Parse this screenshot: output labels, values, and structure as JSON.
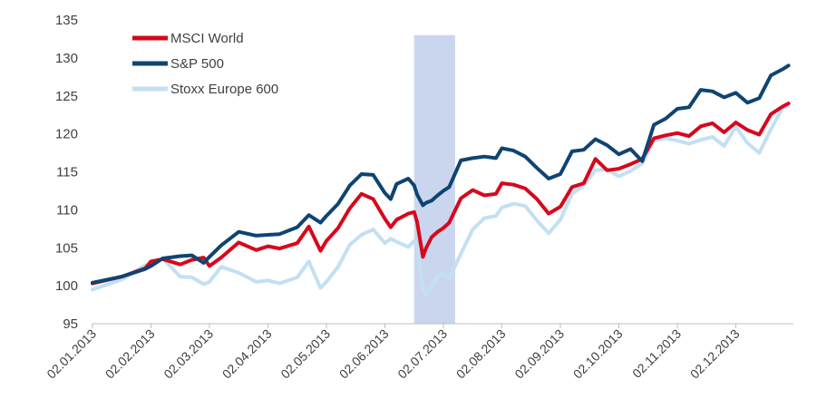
{
  "chart_data": {
    "type": "line",
    "title": "",
    "xlabel": "",
    "ylabel": "",
    "ylim": [
      95,
      135
    ],
    "y_ticks": [
      "95",
      "100",
      "105",
      "110",
      "115",
      "120",
      "125",
      "130",
      "135"
    ],
    "x_ticks": [
      "02.01.2013",
      "02.02.2013",
      "02.03.2013",
      "02.04.2013",
      "02.05.2013",
      "02.06.2013",
      "02.07.2013",
      "02.08.2013",
      "02.09.2013",
      "02.10.2013",
      "02.11.2013",
      "02.12.2013"
    ],
    "legend_position": "top-left",
    "grid": false,
    "highlight_band": {
      "from_month": 5.5,
      "to_month": 6.2,
      "color": "#c9d6ee"
    },
    "x_month_positions": [
      0,
      0.5,
      0.9,
      1.0,
      1.2,
      1.5,
      1.7,
      1.9,
      2.0,
      2.2,
      2.5,
      2.8,
      3.0,
      3.2,
      3.5,
      3.7,
      3.9,
      4.0,
      4.2,
      4.4,
      4.6,
      4.8,
      5.0,
      5.1,
      5.2,
      5.4,
      5.5,
      5.55,
      5.65,
      5.7,
      5.8,
      5.9,
      6.0,
      6.1,
      6.3,
      6.5,
      6.7,
      6.9,
      7.0,
      7.2,
      7.4,
      7.6,
      7.8,
      8.0,
      8.2,
      8.4,
      8.6,
      8.8,
      9.0,
      9.2,
      9.4,
      9.6,
      9.8,
      10.0,
      10.2,
      10.4,
      10.6,
      10.8,
      11.0,
      11.2,
      11.4,
      11.6,
      11.8,
      11.9
    ],
    "series": [
      {
        "name": "MSCI World",
        "color": "#d7081c",
        "values": [
          100.3,
          101.2,
          102.3,
          103.2,
          103.5,
          102.8,
          103.4,
          103.7,
          102.6,
          103.7,
          105.7,
          104.7,
          105.2,
          104.9,
          105.6,
          107.8,
          104.6,
          105.9,
          107.6,
          110.2,
          112.1,
          111.4,
          108.8,
          107.7,
          108.7,
          109.5,
          109.7,
          108.4,
          103.8,
          104.9,
          106.4,
          107.1,
          107.6,
          108.3,
          111.5,
          112.6,
          111.9,
          112.1,
          113.5,
          113.3,
          112.8,
          111.4,
          109.5,
          110.4,
          113.0,
          113.5,
          116.7,
          115.2,
          115.4,
          116.0,
          116.7,
          119.4,
          119.8,
          120.1,
          119.7,
          121.0,
          121.4,
          120.2,
          121.5,
          120.5,
          119.9,
          122.6,
          123.6,
          124.0
        ]
      },
      {
        "name": "S&P 500",
        "color": "#0f4471",
        "values": [
          100.4,
          101.2,
          102.2,
          102.6,
          103.6,
          103.9,
          104.0,
          103.0,
          103.8,
          105.3,
          107.1,
          106.6,
          106.7,
          106.8,
          107.7,
          109.3,
          108.3,
          109.2,
          110.8,
          113.2,
          114.7,
          114.6,
          112.2,
          111.4,
          113.4,
          114.1,
          113.2,
          112.0,
          110.6,
          110.9,
          111.2,
          111.9,
          112.5,
          113.0,
          116.5,
          116.8,
          117.0,
          116.8,
          118.1,
          117.8,
          117.0,
          115.5,
          114.1,
          114.7,
          117.7,
          117.9,
          119.3,
          118.5,
          117.3,
          118.0,
          116.4,
          121.2,
          122.0,
          123.3,
          123.5,
          125.8,
          125.6,
          124.8,
          125.4,
          124.1,
          124.7,
          127.7,
          128.5,
          129.0
        ]
      },
      {
        "name": "Stoxx Europe 600",
        "color": "#c3e0f3",
        "values": [
          99.5,
          100.8,
          102.7,
          102.7,
          103.6,
          101.2,
          101.1,
          100.2,
          100.5,
          102.5,
          101.7,
          100.5,
          100.7,
          100.3,
          101.1,
          103.2,
          99.7,
          100.5,
          102.5,
          105.4,
          106.7,
          107.4,
          105.6,
          106.2,
          105.8,
          105.1,
          105.9,
          105.3,
          99.4,
          98.7,
          99.9,
          101.3,
          101.5,
          101.0,
          104.2,
          107.4,
          108.9,
          109.2,
          110.3,
          110.8,
          110.5,
          108.6,
          106.9,
          108.7,
          112.1,
          113.2,
          115.2,
          115.3,
          114.4,
          115.1,
          116.1,
          119.1,
          119.4,
          119.1,
          118.7,
          119.2,
          119.6,
          118.4,
          120.9,
          118.8,
          117.5,
          120.6,
          123.4,
          123.7
        ]
      }
    ]
  }
}
